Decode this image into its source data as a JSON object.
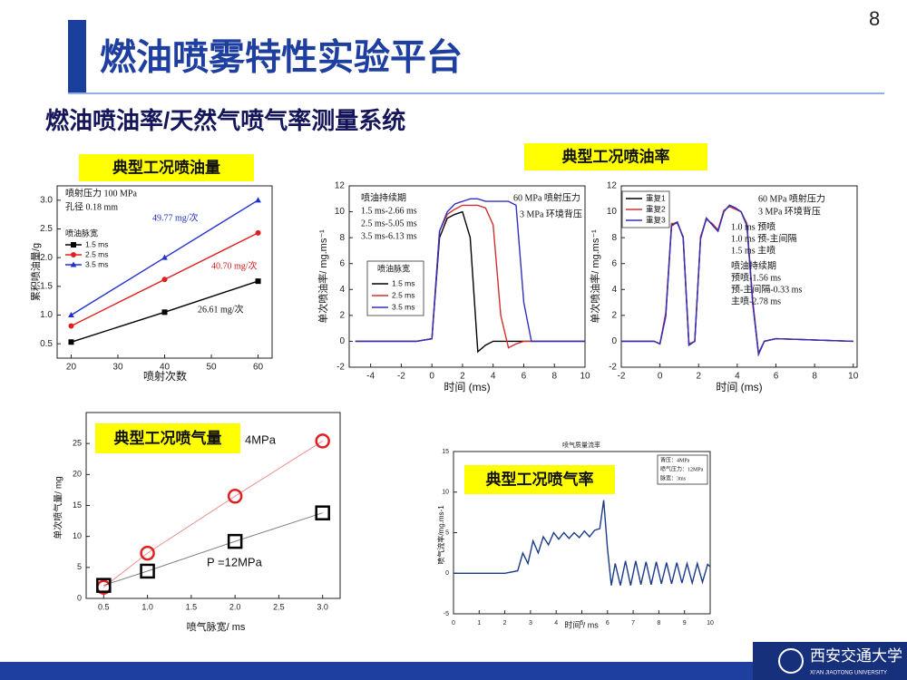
{
  "page_number": "8",
  "title": "燃油喷雾特性实验平台",
  "subtitle": "燃油喷油率/天然气喷气率测量系统",
  "footer": {
    "logo": "西安交通大学",
    "logo_en": "XI'AN JIAOTONG UNIVERSITY"
  },
  "chart_data": [
    {
      "type": "line",
      "title": "典型工况喷油量",
      "x_label": "喷射次数",
      "y_label": "累积喷油量/g",
      "x": [
        20,
        40,
        60
      ],
      "xlim": [
        17,
        63
      ],
      "ylim": [
        0.25,
        3.25
      ],
      "xticks": [
        20,
        30,
        40,
        50,
        60
      ],
      "yticks": [
        0.5,
        {
          "value": 1,
          "label": "1.0"
        },
        1.5,
        {
          "value": 2,
          "label": "2.0"
        },
        2.5,
        {
          "value": 3,
          "label": "3.0"
        }
      ],
      "legend_title": "喷油脉宽",
      "annotations": [
        "喷射压力 100 MPa",
        "孔径 0.18 mm",
        "49.77 mg/次",
        "40.70 mg/次",
        "26.61 mg/次"
      ],
      "series": [
        {
          "name": "1.5 ms",
          "color": "#000000",
          "marker": "square",
          "values": [
            0.53,
            1.05,
            1.59
          ]
        },
        {
          "name": "2.5 ms",
          "color": "#e02020",
          "marker": "circle",
          "values": [
            0.81,
            1.62,
            2.43
          ]
        },
        {
          "name": "3.5 ms",
          "color": "#2030d0",
          "marker": "triangle",
          "values": [
            1.0,
            2.0,
            3.0
          ]
        }
      ]
    },
    {
      "type": "line",
      "title": "典型工况喷油率",
      "x_label": "时间 (ms)",
      "y_label": "单次喷油率/ mg.ms⁻¹",
      "x": [
        -5,
        -1,
        0,
        0.5,
        1,
        1.5,
        2,
        2.5,
        3,
        3.5,
        4,
        4.5,
        5,
        5.5,
        6,
        6.5,
        7,
        8,
        10
      ],
      "xlim": [
        -5.4,
        10
      ],
      "ylim": [
        -2,
        12
      ],
      "xticks": [
        -4,
        -2,
        0,
        2,
        4,
        6,
        8,
        10
      ],
      "yticks": [
        -2,
        0,
        2,
        4,
        6,
        8,
        10,
        12
      ],
      "legend_title": "喷油脉宽",
      "annotations": [
        "喷油持续期",
        "1.5 ms-2.66 ms",
        "2.5 ms-5.05 ms",
        "3.5 ms-6.13 ms",
        "60 MPa 喷射压力",
        "3 MPa 环境背压"
      ],
      "series": [
        {
          "name": "1.5 ms",
          "color": "#000000",
          "values": [
            0,
            0,
            0.2,
            8,
            9.5,
            9.8,
            10,
            8,
            -0.8,
            -0.3,
            0,
            0,
            0,
            0,
            0,
            0,
            0,
            0,
            0
          ]
        },
        {
          "name": "2.5 ms",
          "color": "#d03030",
          "values": [
            0,
            0,
            0.2,
            8.5,
            9.8,
            10.2,
            10.5,
            10.5,
            10.5,
            10.3,
            9,
            2,
            -0.5,
            -0.2,
            0,
            0,
            0,
            0,
            0
          ]
        },
        {
          "name": "3.5 ms",
          "color": "#3030c0",
          "values": [
            0,
            0,
            0.2,
            8.5,
            10,
            10.6,
            10.8,
            11,
            11,
            10.8,
            10.8,
            10.8,
            10.8,
            10.5,
            3,
            0,
            0,
            0,
            0
          ]
        }
      ]
    },
    {
      "type": "line",
      "x_label": "时间 (ms)",
      "y_label": "单次喷油率/ mg.ms⁻¹",
      "x": [
        -2,
        -0.3,
        0,
        0.3,
        0.6,
        0.9,
        1.2,
        1.5,
        1.8,
        2.1,
        2.4,
        2.7,
        3,
        3.3,
        3.6,
        3.9,
        4.2,
        4.5,
        4.8,
        5.1,
        5.4,
        6,
        10
      ],
      "xlim": [
        -2,
        10.2
      ],
      "ylim": [
        -2,
        12
      ],
      "xticks": [
        -2,
        0,
        2,
        4,
        6,
        8,
        10
      ],
      "yticks": [
        -2,
        0,
        2,
        4,
        6,
        8,
        10,
        12
      ],
      "annotations": [
        "60 MPa 喷射压力",
        "3 MPa 环境背压",
        "1.0 ms 预喷",
        "1.0 ms 预-主间隔",
        "1.5 ms 主喷",
        "喷油持续期",
        "预喷-1.56 ms",
        "预-主间隔-0.33 ms",
        "主喷-2.78 ms"
      ],
      "series": [
        {
          "name": "重复1",
          "color": "#000000",
          "values": [
            0,
            0,
            -0.2,
            2,
            9,
            9.2,
            8,
            -0.3,
            0,
            8,
            9.5,
            9,
            8.5,
            10,
            10.5,
            10.3,
            10,
            9,
            3,
            -1,
            0,
            0.2,
            0
          ]
        },
        {
          "name": "重复2",
          "color": "#d03030",
          "values": [
            0,
            0,
            -0.2,
            2.2,
            9.1,
            9.1,
            8.1,
            -0.2,
            0,
            8.1,
            9.4,
            9.1,
            8.6,
            10.1,
            10.4,
            10.2,
            10,
            9.1,
            3.2,
            -0.9,
            0,
            0.2,
            0
          ]
        },
        {
          "name": "重复3",
          "color": "#3030c0",
          "values": [
            0,
            0,
            -0.2,
            1.9,
            8.9,
            9.2,
            8,
            -0.3,
            0,
            7.9,
            9.5,
            9,
            8.5,
            10,
            10.5,
            10.3,
            10,
            8.9,
            2.9,
            -1,
            0,
            0.2,
            0
          ]
        }
      ]
    },
    {
      "type": "line",
      "title": "典型工况喷气量",
      "x_label": "喷气脉宽/ ms",
      "y_label": "单次喷气量/ mg",
      "x": [
        0.5,
        1.0,
        2.0,
        3.0
      ],
      "xlim": [
        0.3,
        3.2
      ],
      "ylim": [
        0,
        30
      ],
      "xticks": [
        0.5,
        {
          "value": 1,
          "label": "1.0"
        },
        1.5,
        {
          "value": 2,
          "label": "2.0"
        },
        2.5,
        {
          "value": 3,
          "label": "3.0"
        }
      ],
      "yticks": [
        0,
        5,
        10,
        15,
        20,
        25
      ],
      "series": [
        {
          "name": "4MPa",
          "color": "#e02020",
          "marker": "circle",
          "hollow": true,
          "values": [
            1.8,
            7.3,
            16.5,
            25.4
          ]
        },
        {
          "name": "P =12MPa",
          "color": "#000000",
          "marker": "square",
          "hollow": true,
          "values": [
            2.1,
            4.4,
            9.2,
            13.8
          ]
        }
      ]
    },
    {
      "type": "line",
      "title": "典型工况喷气率",
      "caption": "喷气质量流率",
      "x_label": "时间 / ms",
      "y_label": "喷气流率/mg.ms-1",
      "x": [
        0,
        1,
        2,
        2.5,
        2.7,
        2.9,
        3.1,
        3.3,
        3.5,
        3.7,
        3.9,
        4.1,
        4.3,
        4.5,
        4.7,
        4.9,
        5.1,
        5.3,
        5.5,
        5.7,
        5.85,
        6,
        6.15,
        6.3,
        6.5,
        6.7,
        6.9,
        7.1,
        7.3,
        7.5,
        7.7,
        7.9,
        8.1,
        8.3,
        8.5,
        8.7,
        8.9,
        9.1,
        9.3,
        9.5,
        9.7,
        9.9,
        10
      ],
      "xlim": [
        0,
        10
      ],
      "ylim": [
        -5,
        15
      ],
      "xticks": [
        0,
        1,
        2,
        3,
        4,
        5,
        6,
        7,
        8,
        9,
        10
      ],
      "yticks": [
        -5,
        0,
        5,
        10,
        15
      ],
      "annotations": [
        "背压：4MPa",
        "喷气压力：12MPa",
        "脉宽：3ms"
      ],
      "series": [
        {
          "color": "#1a3a8a",
          "values": [
            0,
            0,
            0,
            0.3,
            2.5,
            1.2,
            4,
            2.5,
            4.5,
            3.5,
            5,
            4.2,
            5,
            4.3,
            5,
            4.4,
            5.2,
            4.5,
            5.3,
            5.5,
            9,
            3,
            -1.5,
            1.2,
            -1.5,
            1.5,
            -1.5,
            1.5,
            -1.4,
            1.4,
            -1.4,
            1.4,
            -1.3,
            1.3,
            -1.3,
            1.3,
            -1.2,
            1.2,
            -1.2,
            1.2,
            -1.1,
            1.1,
            0.8
          ]
        }
      ]
    }
  ]
}
